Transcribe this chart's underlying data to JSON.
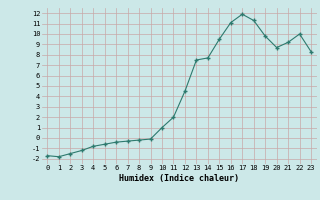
{
  "x": [
    0,
    1,
    2,
    3,
    4,
    5,
    6,
    7,
    8,
    9,
    10,
    11,
    12,
    13,
    14,
    15,
    16,
    17,
    18,
    19,
    20,
    21,
    22,
    23
  ],
  "y": [
    -1.7,
    -1.8,
    -1.5,
    -1.2,
    -0.8,
    -0.6,
    -0.4,
    -0.3,
    -0.2,
    -0.1,
    1.0,
    2.0,
    4.5,
    7.5,
    7.7,
    9.5,
    11.1,
    11.9,
    11.3,
    9.8,
    8.7,
    9.2,
    10.0,
    8.3
  ],
  "xlim": [
    -0.5,
    23.5
  ],
  "ylim": [
    -2.5,
    12.5
  ],
  "yticks": [
    -2,
    -1,
    0,
    1,
    2,
    3,
    4,
    5,
    6,
    7,
    8,
    9,
    10,
    11,
    12
  ],
  "xticks": [
    0,
    1,
    2,
    3,
    4,
    5,
    6,
    7,
    8,
    9,
    10,
    11,
    12,
    13,
    14,
    15,
    16,
    17,
    18,
    19,
    20,
    21,
    22,
    23
  ],
  "xlabel": "Humidex (Indice chaleur)",
  "line_color": "#2d7a6e",
  "marker_color": "#2d7a6e",
  "bg_color": "#cce8e8",
  "grid_color": "#c8a8a8",
  "tick_fontsize": 5.0,
  "xlabel_fontsize": 6.0
}
